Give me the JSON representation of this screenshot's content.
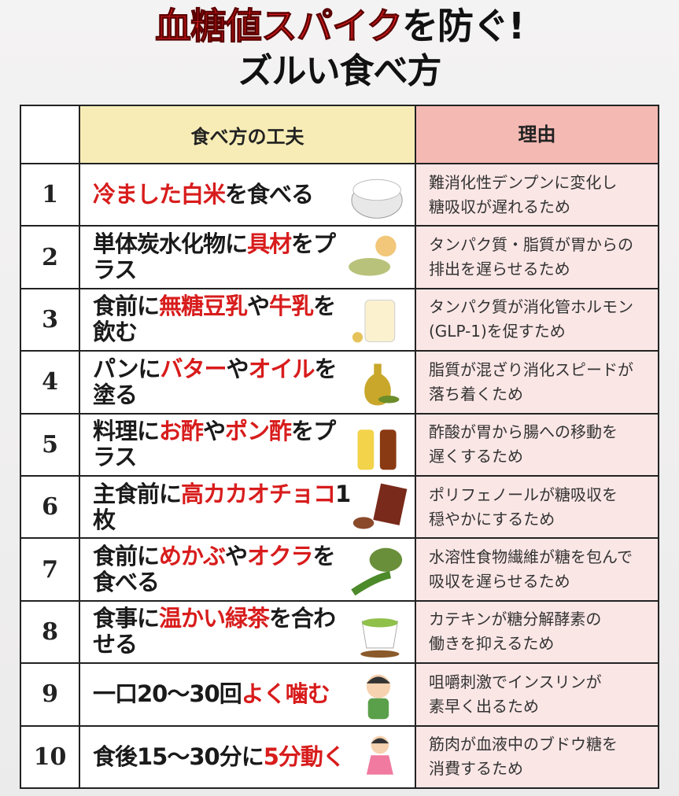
{
  "title": {
    "parts": [
      {
        "text": "血糖値スパイク",
        "red": true
      },
      {
        "text": "を防ぐ!"
      }
    ],
    "line2": "ズルい食べ方"
  },
  "header": {
    "method": "食べ方の工夫",
    "reason": "理由"
  },
  "rows": [
    {
      "no": 1,
      "method": [
        {
          "text": "冷ました白米",
          "red": true
        },
        {
          "text": "を食べる"
        }
      ],
      "reason": [
        "難消化性デンプンに変化し",
        "糖吸収が遅れるため"
      ]
    },
    {
      "no": 2,
      "method": [
        {
          "text": "単体炭水化物に"
        },
        {
          "text": "具材",
          "red": true
        },
        {
          "text": "をプラス"
        }
      ],
      "reason": [
        "タンパク質・脂質が胃からの",
        "排出を遅らせるため"
      ]
    },
    {
      "no": 3,
      "method": [
        {
          "text": "食前に"
        },
        {
          "text": "無糖豆乳",
          "red": true
        },
        {
          "text": "や"
        },
        {
          "text": "牛乳",
          "red": true
        },
        {
          "text": "を飲む"
        }
      ],
      "reason": [
        "タンパク質が消化管ホルモン",
        "(GLP-1)を促すため"
      ]
    },
    {
      "no": 4,
      "method": [
        {
          "text": "パンに"
        },
        {
          "text": "バター",
          "red": true
        },
        {
          "text": "や"
        },
        {
          "text": "オイル",
          "red": true
        },
        {
          "text": "を塗る"
        }
      ],
      "reason": [
        "脂質が混ざり消化スピードが",
        "落ち着くため"
      ]
    },
    {
      "no": 5,
      "method": [
        {
          "text": "料理に"
        },
        {
          "text": "お酢",
          "red": true
        },
        {
          "text": "や"
        },
        {
          "text": "ポン酢",
          "red": true
        },
        {
          "text": "をプラス"
        }
      ],
      "reason": [
        "酢酸が胃から腸への移動を",
        "遅くするため"
      ]
    },
    {
      "no": 6,
      "method": [
        {
          "text": "主食前に"
        },
        {
          "text": "高カカオチョコ",
          "red": true
        },
        {
          "text": "1枚"
        }
      ],
      "reason": [
        "ポリフェノールが糖吸収を",
        "穏やかにするため"
      ]
    },
    {
      "no": 7,
      "method": [
        {
          "text": "食前に"
        },
        {
          "text": "めかぶ",
          "red": true
        },
        {
          "text": "や"
        },
        {
          "text": "オクラ",
          "red": true
        },
        {
          "text": "を食べる"
        }
      ],
      "reason": [
        "水溶性食物繊維が糖を包んで",
        "吸収を遅らせるため"
      ]
    },
    {
      "no": 8,
      "method": [
        {
          "text": "食事に"
        },
        {
          "text": "温かい緑茶",
          "red": true
        },
        {
          "text": "を合わせる"
        }
      ],
      "reason": [
        "カテキンが糖分解酵素の",
        "働きを抑えるため"
      ]
    },
    {
      "no": 9,
      "method": [
        {
          "text": "一口20～30回"
        },
        {
          "text": "よく噛む",
          "red": true
        }
      ],
      "reason": [
        "咀嚼刺激でインスリンが",
        "素早く出るため"
      ]
    },
    {
      "no": 10,
      "method": [
        {
          "text": "食後15～30分に"
        },
        {
          "text": "5分動く",
          "red": true
        }
      ],
      "reason": [
        "筋肉が血液中のブドウ糖を",
        "消費するため"
      ]
    }
  ]
}
